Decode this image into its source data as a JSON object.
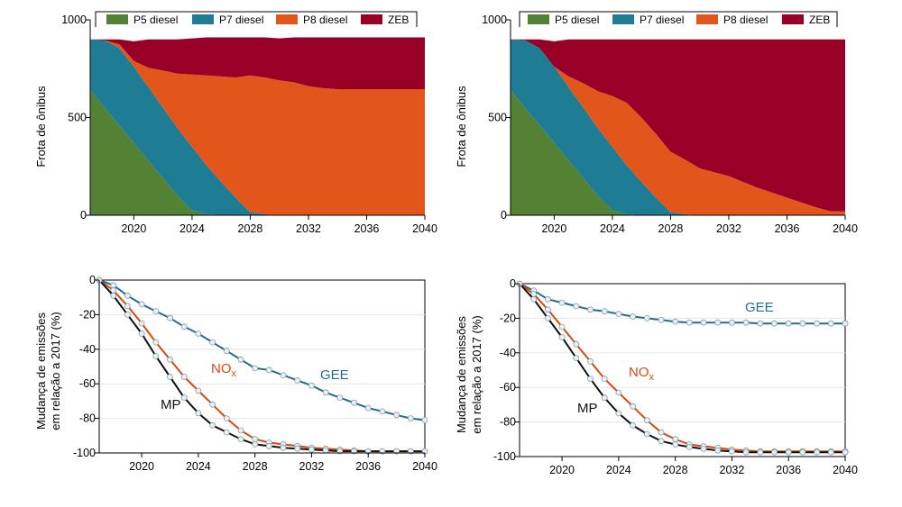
{
  "colors": {
    "P5 diesel": "#548235",
    "P7 diesel": "#1F7C95",
    "P8 diesel": "#E2561C",
    "ZEB": "#990028",
    "MP": "#111111",
    "NOx": "#D9480F",
    "GEE": "#1F6E8C",
    "marker_fill": "#E4F1F7",
    "grid": "#E6E6E6"
  },
  "chart_data": [
    {
      "type": "area",
      "stacked": true,
      "ylabel": "Frota de ônibus",
      "xlim": [
        2017,
        2040
      ],
      "ylim": [
        0,
        1000
      ],
      "yticks": [
        "0",
        "500",
        "1000"
      ],
      "xticks": [
        "2020",
        "2024",
        "2028",
        "2032",
        "2036",
        "2040"
      ],
      "legend": "top",
      "x": [
        2017,
        2018,
        2019,
        2020,
        2021,
        2022,
        2023,
        2024,
        2025,
        2026,
        2027,
        2028,
        2029,
        2030,
        2031,
        2032,
        2033,
        2034,
        2035,
        2036,
        2037,
        2038,
        2039,
        2040
      ],
      "series": [
        {
          "name": "P5 diesel",
          "values": [
            640,
            550,
            460,
            370,
            280,
            190,
            100,
            25,
            5,
            0,
            0,
            0,
            0,
            0,
            0,
            0,
            0,
            0,
            0,
            0,
            0,
            0,
            0,
            0
          ]
        },
        {
          "name": "P7 diesel",
          "values": [
            260,
            345,
            395,
            390,
            375,
            360,
            345,
            325,
            250,
            170,
            90,
            15,
            5,
            0,
            0,
            0,
            0,
            0,
            0,
            0,
            0,
            0,
            0,
            0
          ]
        },
        {
          "name": "P8 diesel",
          "values": [
            0,
            0,
            20,
            30,
            100,
            190,
            280,
            370,
            460,
            540,
            615,
            700,
            700,
            690,
            680,
            660,
            650,
            645,
            645,
            645,
            645,
            645,
            645,
            645
          ]
        },
        {
          "name": "ZEB",
          "values": [
            0,
            5,
            25,
            100,
            145,
            160,
            175,
            185,
            195,
            200,
            205,
            195,
            205,
            215,
            230,
            250,
            260,
            265,
            265,
            265,
            265,
            265,
            265,
            265
          ]
        }
      ]
    },
    {
      "type": "area",
      "stacked": true,
      "ylabel": "Frota de ônibus",
      "xlim": [
        2017,
        2040
      ],
      "ylim": [
        0,
        1000
      ],
      "yticks": [
        "0",
        "500",
        "1000"
      ],
      "xticks": [
        "2020",
        "2024",
        "2028",
        "2032",
        "2036",
        "2040"
      ],
      "legend": "top",
      "x": [
        2017,
        2018,
        2019,
        2020,
        2021,
        2022,
        2023,
        2024,
        2025,
        2026,
        2027,
        2028,
        2029,
        2030,
        2031,
        2032,
        2033,
        2034,
        2035,
        2036,
        2037,
        2038,
        2039,
        2040
      ],
      "series": [
        {
          "name": "P5 diesel",
          "values": [
            640,
            550,
            460,
            370,
            280,
            190,
            100,
            25,
            5,
            0,
            0,
            0,
            0,
            0,
            0,
            0,
            0,
            0,
            0,
            0,
            0,
            0,
            0,
            0
          ]
        },
        {
          "name": "P7 diesel",
          "values": [
            260,
            345,
            395,
            390,
            375,
            360,
            345,
            325,
            250,
            170,
            90,
            15,
            5,
            0,
            0,
            0,
            0,
            0,
            0,
            0,
            0,
            0,
            0,
            0
          ]
        },
        {
          "name": "P8 diesel",
          "values": [
            0,
            0,
            0,
            0,
            55,
            125,
            190,
            260,
            320,
            330,
            325,
            310,
            280,
            240,
            220,
            200,
            170,
            140,
            115,
            90,
            65,
            40,
            20,
            20
          ]
        },
        {
          "name": "ZEB",
          "values": [
            0,
            5,
            45,
            130,
            190,
            225,
            265,
            290,
            325,
            400,
            485,
            575,
            615,
            660,
            680,
            700,
            730,
            760,
            785,
            810,
            835,
            860,
            880,
            880
          ]
        }
      ]
    },
    {
      "type": "line",
      "ylabel": "Mudança de emissões em relação a 2017 (%)",
      "xlim": [
        2017,
        2040
      ],
      "ylim": [
        -100,
        0
      ],
      "yticks": [
        "0",
        "-20",
        "-40",
        "-60",
        "-80",
        "-100"
      ],
      "xticks": [
        "2020",
        "2024",
        "2028",
        "2032",
        "2036",
        "2040"
      ],
      "x": [
        2017,
        2018,
        2019,
        2020,
        2021,
        2022,
        2023,
        2024,
        2025,
        2026,
        2027,
        2028,
        2029,
        2030,
        2031,
        2032,
        2033,
        2034,
        2035,
        2036,
        2037,
        2038,
        2039,
        2040
      ],
      "series": [
        {
          "name": "MP",
          "values": [
            0,
            -9,
            -20,
            -31,
            -44,
            -56,
            -68,
            -77,
            -84,
            -88,
            -92,
            -95,
            -96,
            -97,
            -97.5,
            -98,
            -98.5,
            -99,
            -99,
            -99,
            -99,
            -99,
            -99,
            -99
          ]
        },
        {
          "name": "NOx",
          "values": [
            0,
            -6,
            -15,
            -25,
            -36,
            -46,
            -56,
            -64,
            -72,
            -80,
            -87,
            -92,
            -94,
            -95,
            -96,
            -97,
            -97.5,
            -98,
            -98.5,
            -99,
            -99,
            -99,
            -99,
            -99
          ]
        },
        {
          "name": "GEE",
          "values": [
            0,
            -3,
            -9,
            -14,
            -18,
            -22,
            -27,
            -31,
            -36,
            -41,
            -46,
            -51,
            -52,
            -55,
            -58,
            -61,
            -65,
            -68,
            -71,
            -74,
            -76,
            -78,
            -80,
            -81
          ]
        }
      ]
    },
    {
      "type": "line",
      "ylabel": "Mudança de emissões em relação a 2017 (%)",
      "xlim": [
        2017,
        2040
      ],
      "ylim": [
        -100,
        0
      ],
      "yticks": [
        "0",
        "-20",
        "-40",
        "-60",
        "-80",
        "-100"
      ],
      "xticks": [
        "2020",
        "2024",
        "2028",
        "2032",
        "2036",
        "2040"
      ],
      "x": [
        2017,
        2018,
        2019,
        2020,
        2021,
        2022,
        2023,
        2024,
        2025,
        2026,
        2027,
        2028,
        2029,
        2030,
        2031,
        2032,
        2033,
        2034,
        2035,
        2036,
        2037,
        2038,
        2039,
        2040
      ],
      "series": [
        {
          "name": "MP",
          "values": [
            0,
            -9,
            -20,
            -31,
            -43,
            -55,
            -66,
            -75,
            -82,
            -87,
            -91,
            -93,
            -94.5,
            -95.5,
            -96.5,
            -97,
            -97.5,
            -97.5,
            -97.5,
            -97.5,
            -97.5,
            -97.5,
            -97.5,
            -97.5
          ]
        },
        {
          "name": "NOx",
          "values": [
            0,
            -6,
            -15,
            -25,
            -35,
            -45,
            -55,
            -63,
            -71,
            -79,
            -86,
            -90,
            -93,
            -94,
            -95,
            -96,
            -96.5,
            -97,
            -97,
            -97,
            -97,
            -97,
            -97,
            -97
          ]
        },
        {
          "name": "GEE",
          "values": [
            0,
            -4,
            -9,
            -11,
            -13,
            -15,
            -16,
            -17.5,
            -19,
            -20,
            -21,
            -22,
            -22.5,
            -22.5,
            -22.5,
            -22.5,
            -22.5,
            -23,
            -23,
            -23,
            -23,
            -23,
            -23,
            -23
          ]
        }
      ]
    }
  ],
  "series_labels": {
    "MP": "MP",
    "NOx_base": "NO",
    "NOx_sub": "x",
    "GEE": "GEE"
  }
}
